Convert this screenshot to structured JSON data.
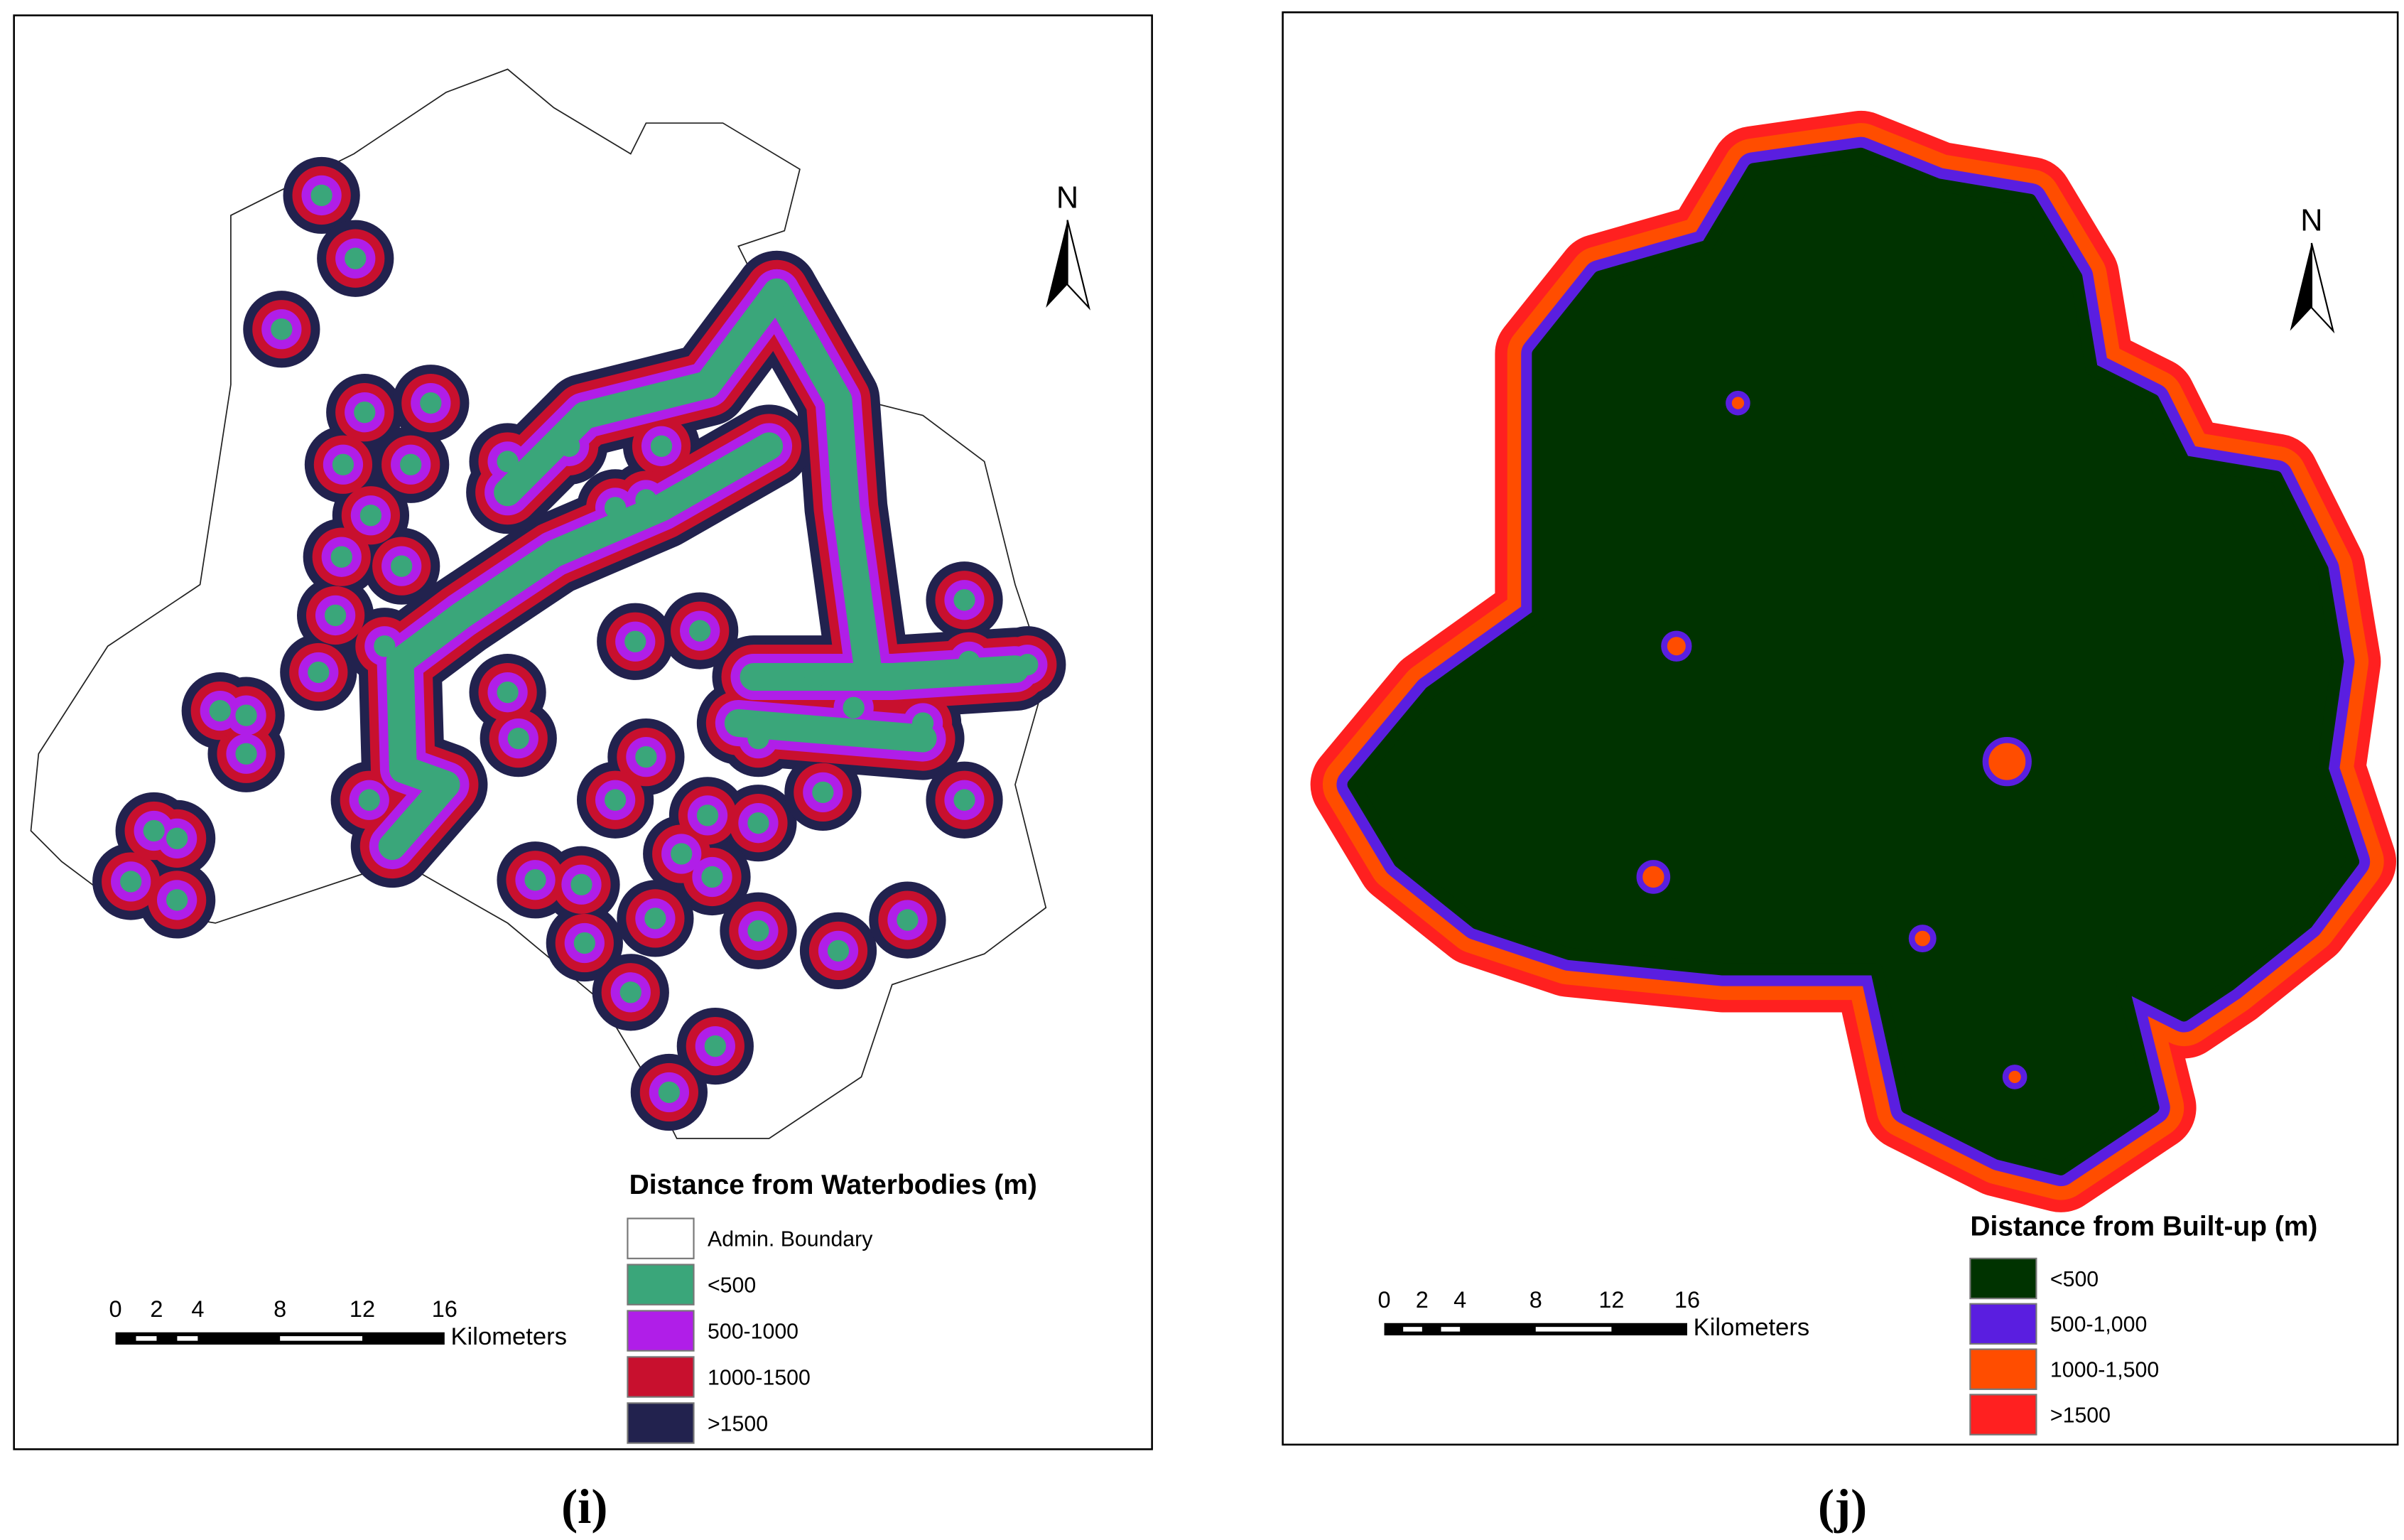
{
  "panels": [
    {
      "legend": {
        "title": "Distance from Waterbodies (m)",
        "items": [
          "Admin. Boundary",
          "<500",
          "500-1000",
          "1000-1500",
          ">1500"
        ]
      },
      "north": "N",
      "scale": {
        "ticks": [
          "0",
          "2",
          "4",
          "8",
          "12",
          "16"
        ],
        "unit": "Kilometers"
      },
      "caption": "(i)"
    },
    {
      "legend": {
        "title": "Distance from Built-up (m)",
        "items": [
          "<500",
          "500-1,000",
          "1000-1,500",
          ">1500"
        ]
      },
      "north": "N",
      "scale": {
        "ticks": [
          "0",
          "2",
          "4",
          "8",
          "12",
          "16"
        ],
        "unit": "Kilometers"
      },
      "caption": "(j)"
    }
  ]
}
